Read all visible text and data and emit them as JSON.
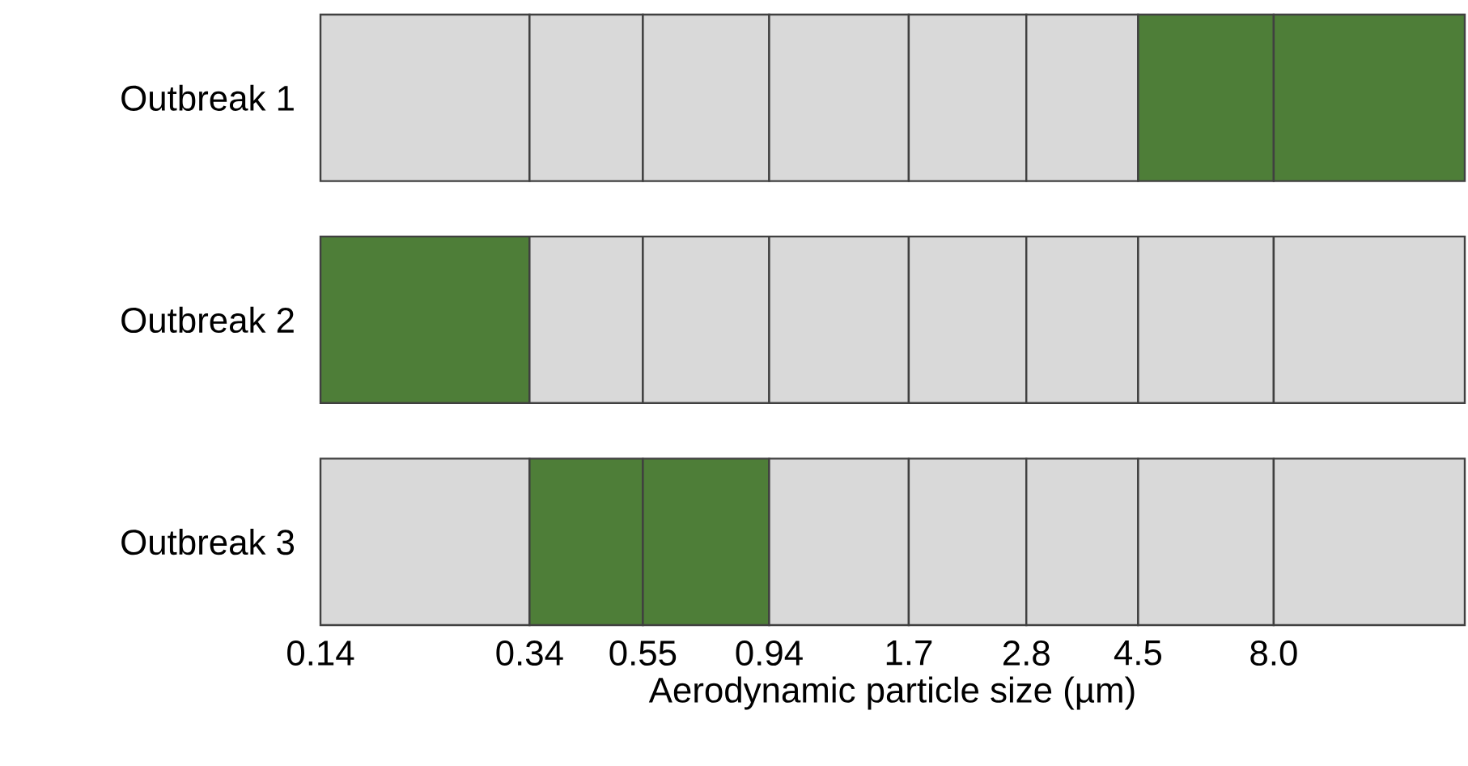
{
  "chart_data": {
    "type": "bar",
    "orientation": "horizontal",
    "log": "x",
    "xlabel": "Aerodynamic particle size (µm)",
    "categories": [
      "Outbreak 1",
      "Outbreak 2",
      "Outbreak 3"
    ],
    "series": [
      {
        "colors": [
          "#d9d9d9",
          "#4e7e38",
          "#d9d9d9"
        ],
        "base": [
          0.14,
          0.14,
          0.14
        ],
        "values": [
          0.2,
          0.2,
          0.2
        ]
      },
      {
        "colors": [
          "#d9d9d9",
          "#d9d9d9",
          "#4e7e38"
        ],
        "base": [
          0.34,
          0.34,
          0.34
        ],
        "values": [
          0.21,
          0.21,
          0.21
        ]
      },
      {
        "colors": [
          "#d9d9d9",
          "#d9d9d9",
          "#4e7e38"
        ],
        "base": [
          0.55,
          0.55,
          0.55
        ],
        "values": [
          0.39,
          0.39,
          0.39
        ]
      },
      {
        "colors": [
          "#d9d9d9",
          "#d9d9d9",
          "#d9d9d9"
        ],
        "base": [
          0.94,
          0.94,
          0.94
        ],
        "values": [
          0.76,
          0.76,
          0.76
        ]
      },
      {
        "colors": [
          "#d9d9d9",
          "#d9d9d9",
          "#d9d9d9"
        ],
        "base": [
          1.7,
          1.7,
          1.7
        ],
        "values": [
          1.1,
          1.1,
          1.1
        ]
      },
      {
        "colors": [
          "#d9d9d9",
          "#d9d9d9",
          "#d9d9d9"
        ],
        "base": [
          2.8,
          2.8,
          2.8
        ],
        "values": [
          1.7,
          1.7,
          1.7
        ]
      },
      {
        "colors": [
          "#4e7e38",
          "#d9d9d9",
          "#d9d9d9"
        ],
        "base": [
          4.5,
          4.5,
          4.5
        ],
        "values": [
          3.5,
          3.5,
          3.5
        ]
      },
      {
        "colors": [
          "#4e7e38",
          "#d9d9d9",
          "#d9d9d9"
        ],
        "base": [
          8,
          8,
          8
        ],
        "values": [
          10,
          10,
          10
        ]
      }
    ],
    "xlim": [
      0.14,
      18
    ],
    "xticks": [
      0.14,
      0.34,
      0.55,
      0.94,
      1.7,
      2.8,
      4.5,
      {
        "value": 8,
        "label": "8.0"
      }
    ]
  }
}
